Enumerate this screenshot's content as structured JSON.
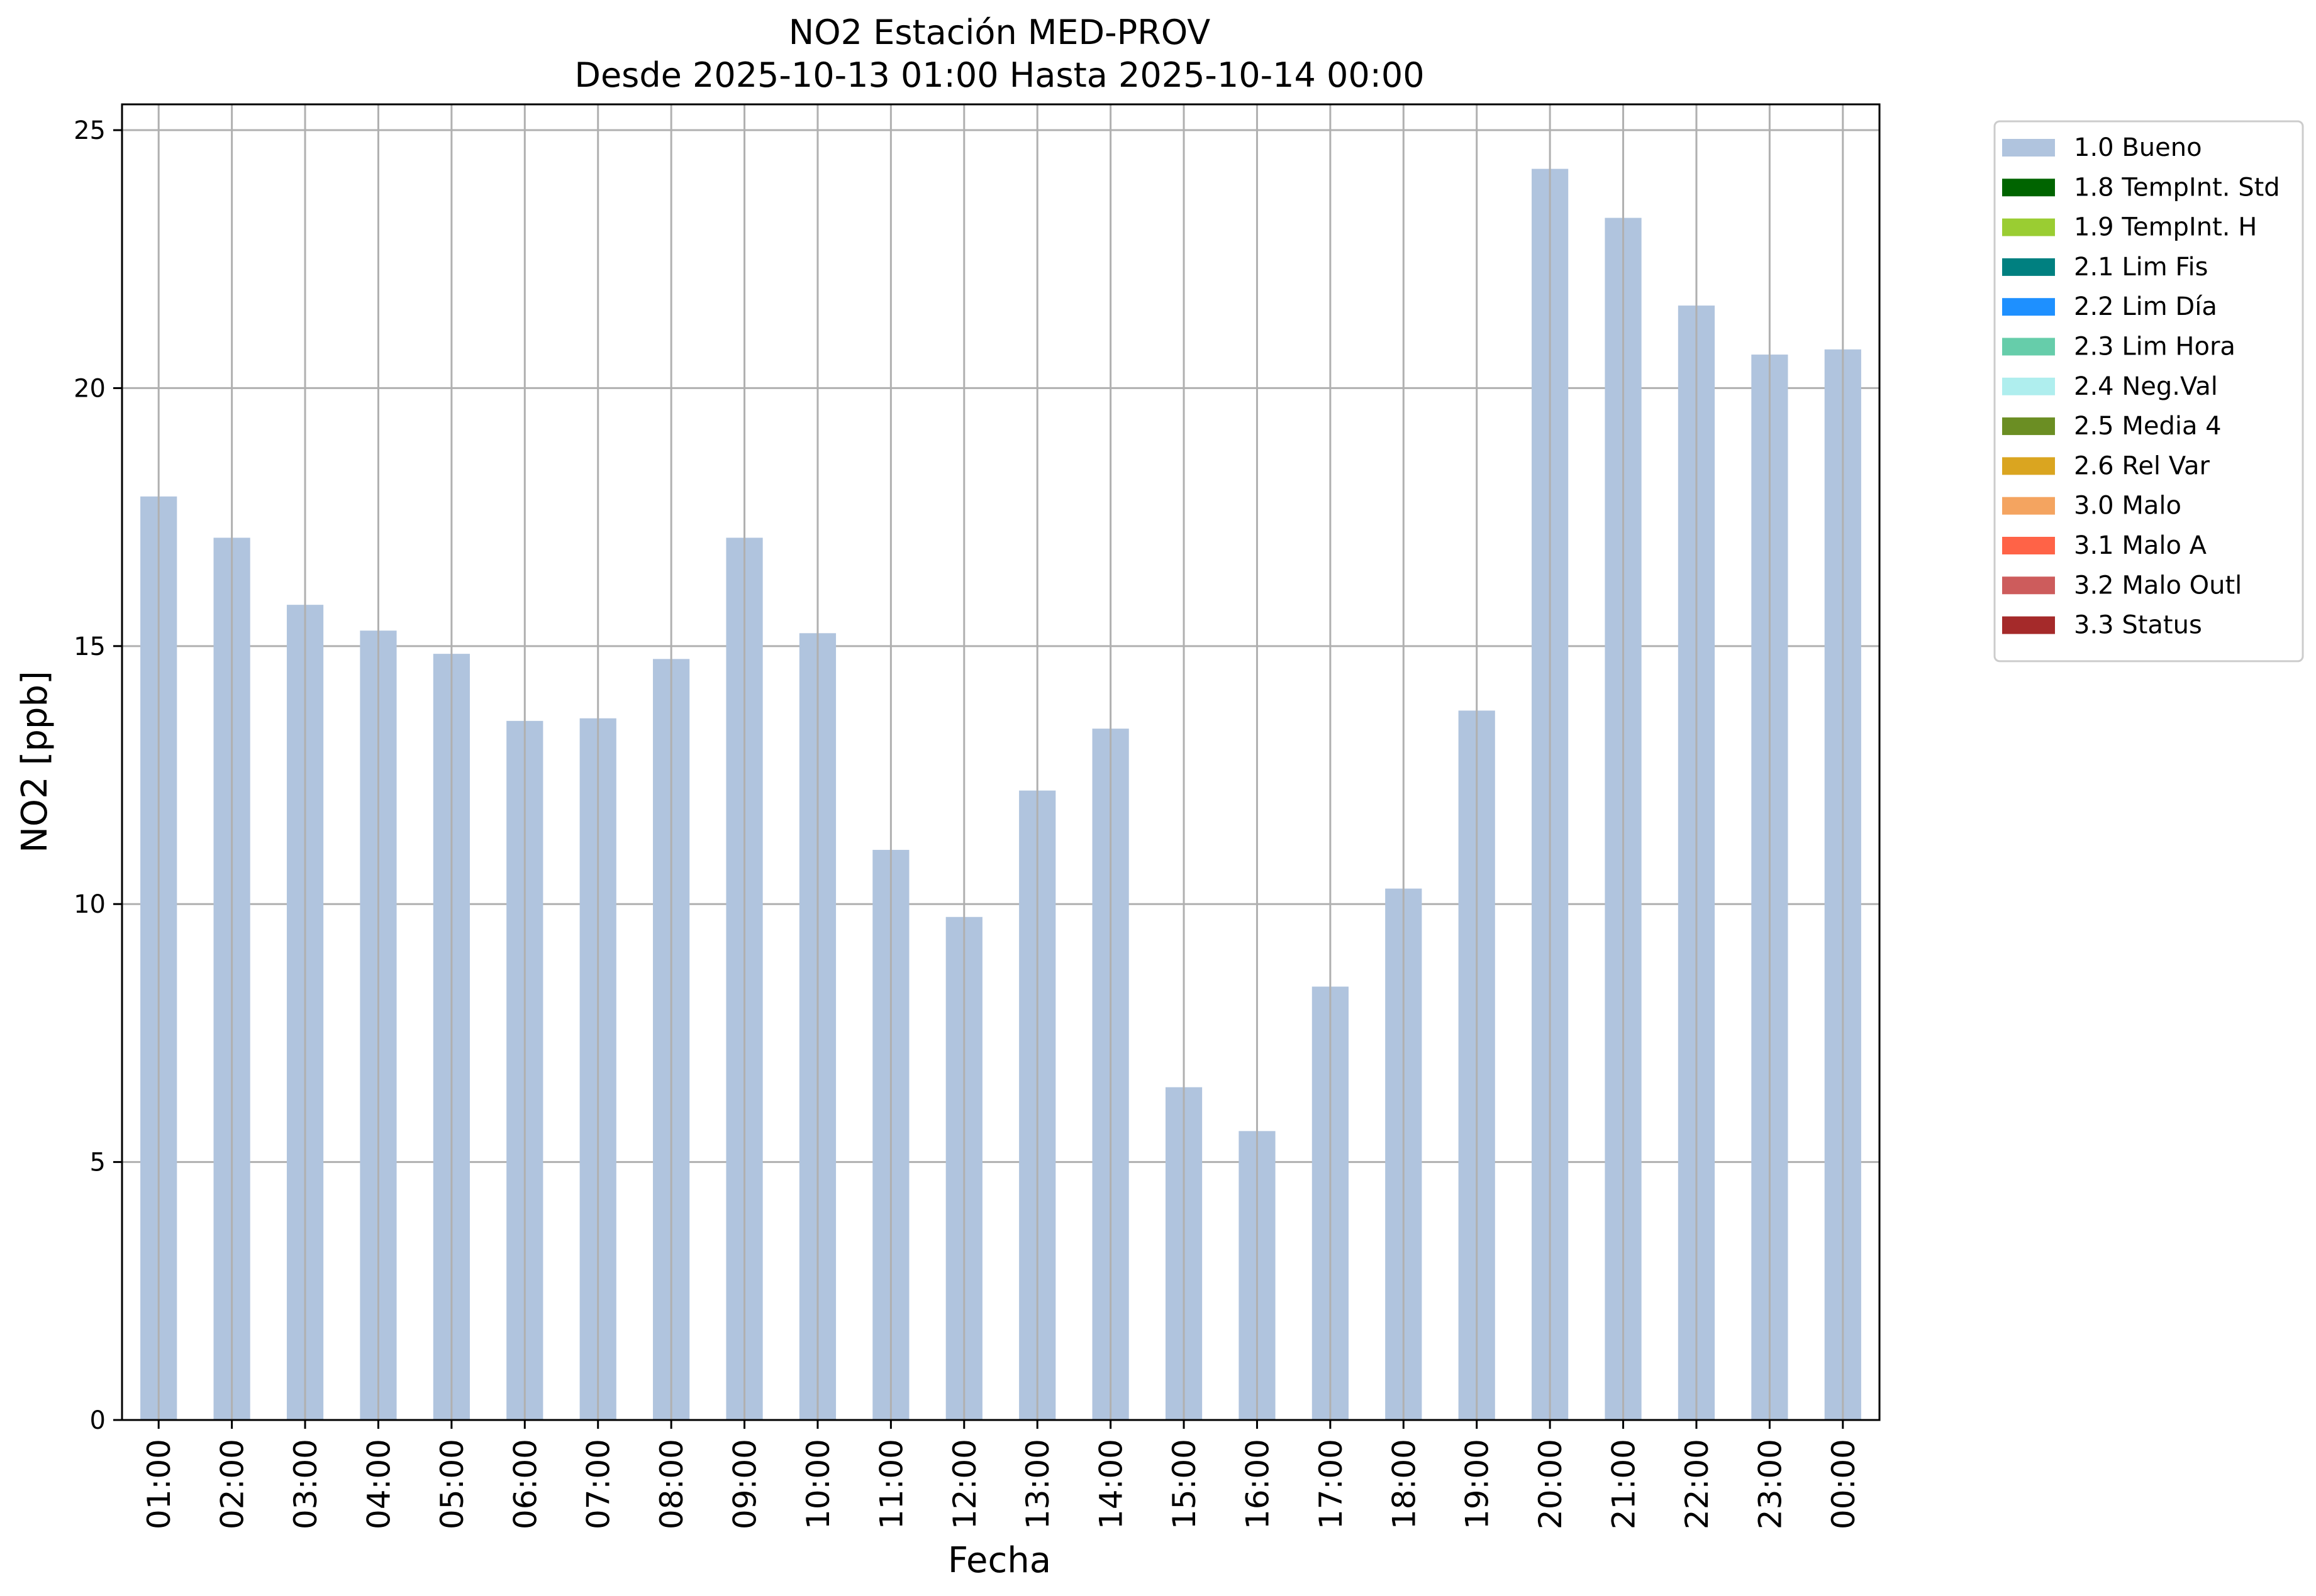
{
  "chart_data": {
    "type": "bar",
    "title_lines": [
      "NO2 Estación MED-PROV",
      "Desde 2025-10-13 01:00 Hasta 2025-10-14 00:00"
    ],
    "xlabel": "Fecha",
    "ylabel": "NO2 [ppb]",
    "ylim": [
      0,
      25.5
    ],
    "yticks": [
      0,
      5,
      10,
      15,
      20,
      25
    ],
    "ytick_labels": [
      "0",
      "5",
      "10",
      "15",
      "20",
      "25"
    ],
    "grid": true,
    "legend_position": "outside-right-top",
    "categories": [
      "01:00",
      "02:00",
      "03:00",
      "04:00",
      "05:00",
      "06:00",
      "07:00",
      "08:00",
      "09:00",
      "10:00",
      "11:00",
      "12:00",
      "13:00",
      "14:00",
      "15:00",
      "16:00",
      "17:00",
      "18:00",
      "19:00",
      "20:00",
      "21:00",
      "22:00",
      "23:00",
      "00:00"
    ],
    "series": [
      {
        "name": "1.0 Bueno",
        "color": "#b0c4de",
        "values": [
          17.9,
          17.1,
          15.8,
          15.3,
          14.85,
          13.55,
          13.6,
          14.75,
          17.1,
          15.25,
          11.05,
          9.75,
          12.2,
          13.4,
          6.45,
          5.6,
          8.4,
          10.3,
          13.75,
          24.25,
          23.3,
          21.6,
          20.65,
          20.75
        ]
      }
    ],
    "legend": [
      {
        "label": "1.0 Bueno",
        "color": "#b0c4de"
      },
      {
        "label": "1.8 TempInt. Std",
        "color": "#006400"
      },
      {
        "label": "1.9 TempInt. H",
        "color": "#9acd32"
      },
      {
        "label": "2.1 Lim Fis",
        "color": "#008080"
      },
      {
        "label": "2.2 Lim Día",
        "color": "#1e90ff"
      },
      {
        "label": "2.3 Lim Hora",
        "color": "#66cdaa"
      },
      {
        "label": "2.4 Neg.Val",
        "color": "#afeeee"
      },
      {
        "label": "2.5 Media 4",
        "color": "#6b8e23"
      },
      {
        "label": "2.6 Rel Var",
        "color": "#daa520"
      },
      {
        "label": "3.0 Malo",
        "color": "#f4a460"
      },
      {
        "label": "3.1 Malo A",
        "color": "#ff6347"
      },
      {
        "label": "3.2 Malo Outl",
        "color": "#cd5c5c"
      },
      {
        "label": "3.3 Status",
        "color": "#a52a2a"
      }
    ]
  }
}
